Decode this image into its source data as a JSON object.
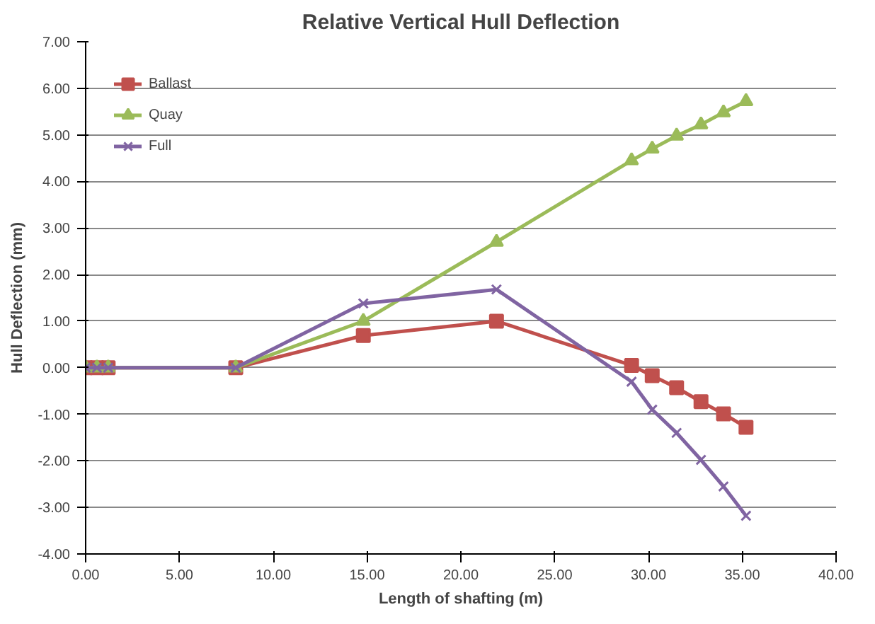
{
  "chart_data": {
    "type": "line",
    "title": "Relative Vertical Hull Deflection",
    "xlabel": "Length of shafting (m)",
    "ylabel": "Hull Deflection (mm)",
    "x": [
      0,
      0.6,
      1.2,
      8.0,
      14.8,
      21.9,
      29.1,
      30.2,
      31.5,
      32.8,
      34.0,
      35.2
    ],
    "series": [
      {
        "name": "Ballast",
        "color": "#c0504d",
        "marker": "square",
        "values": [
          0,
          0,
          0,
          0,
          0.69,
          1.0,
          0.05,
          -0.17,
          -0.43,
          -0.73,
          -0.99,
          -1.28
        ]
      },
      {
        "name": "Quay",
        "color": "#9bbb59",
        "marker": "triangle",
        "values": [
          0,
          0,
          0,
          0,
          1.0,
          2.7,
          4.45,
          4.7,
          4.98,
          5.22,
          5.48,
          5.72
        ]
      },
      {
        "name": "Full",
        "color": "#8064a2",
        "marker": "cross",
        "values": [
          0,
          0,
          0,
          0,
          1.38,
          1.68,
          -0.3,
          -0.9,
          -1.4,
          -1.98,
          -2.55,
          -3.18
        ]
      }
    ],
    "xlim": [
      0,
      40
    ],
    "xticks": [
      {
        "value": 0,
        "label": "0.00"
      },
      {
        "value": 5,
        "label": "5.00"
      },
      {
        "value": 10,
        "label": "10.00"
      },
      {
        "value": 15,
        "label": "15.00"
      },
      {
        "value": 20,
        "label": "20.00"
      },
      {
        "value": 25,
        "label": "25.00"
      },
      {
        "value": 30,
        "label": "30.00"
      },
      {
        "value": 35,
        "label": "35.00"
      },
      {
        "value": 40,
        "label": "40.00"
      }
    ],
    "ylim": [
      -4,
      7
    ],
    "yticks": [
      {
        "value": -4,
        "label": "-4.00"
      },
      {
        "value": -3,
        "label": "-3.00"
      },
      {
        "value": -2,
        "label": "-2.00"
      },
      {
        "value": -1,
        "label": "-1.00"
      },
      {
        "value": 0,
        "label": "0.00"
      },
      {
        "value": 1,
        "label": "1.00"
      },
      {
        "value": 2,
        "label": "2.00"
      },
      {
        "value": 3,
        "label": "3.00"
      },
      {
        "value": 4,
        "label": "4.00"
      },
      {
        "value": 5,
        "label": "5.00"
      },
      {
        "value": 6,
        "label": "6.00"
      },
      {
        "value": 7,
        "label": "7.00"
      }
    ],
    "grid": "y",
    "legend": "top left",
    "line_style": "solid"
  }
}
